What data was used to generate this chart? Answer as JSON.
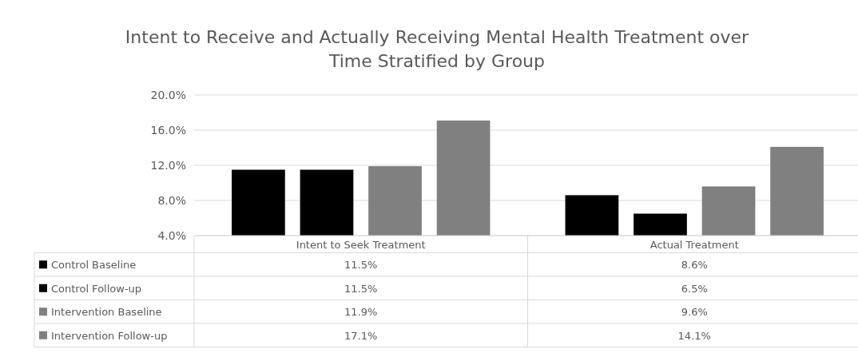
{
  "chart_data": {
    "type": "bar",
    "title": "Intent to Receive and Actually Receiving Mental Health Treatment over Time Stratified by Group",
    "categories": [
      "Intent to Seek Treatment",
      "Actual Treatment"
    ],
    "series": [
      {
        "name": "Control Baseline",
        "color": "#000000",
        "values": [
          11.5,
          8.6
        ],
        "value_labels": [
          "11.5%",
          "8.6%"
        ]
      },
      {
        "name": "Control Follow-up",
        "color": "#000000",
        "values": [
          11.5,
          6.5
        ],
        "value_labels": [
          "11.5%",
          "6.5%"
        ]
      },
      {
        "name": "Intervention Baseline",
        "color": "#808080",
        "values": [
          11.9,
          9.6
        ],
        "value_labels": [
          "11.9%",
          "9.6%"
        ]
      },
      {
        "name": "Intervention Follow-up",
        "color": "#808080",
        "values": [
          17.1,
          14.1
        ],
        "value_labels": [
          "17.1%",
          "14.1%"
        ]
      }
    ],
    "ylim": [
      4,
      20
    ],
    "yticks": [
      {
        "value": 4,
        "label": "4.0%"
      },
      {
        "value": 8,
        "label": "8.0%"
      },
      {
        "value": 12,
        "label": "12.0%"
      },
      {
        "value": 16,
        "label": "16.0%"
      },
      {
        "value": 20,
        "label": "20.0%"
      }
    ],
    "grid": "y",
    "legend": "bottom"
  }
}
